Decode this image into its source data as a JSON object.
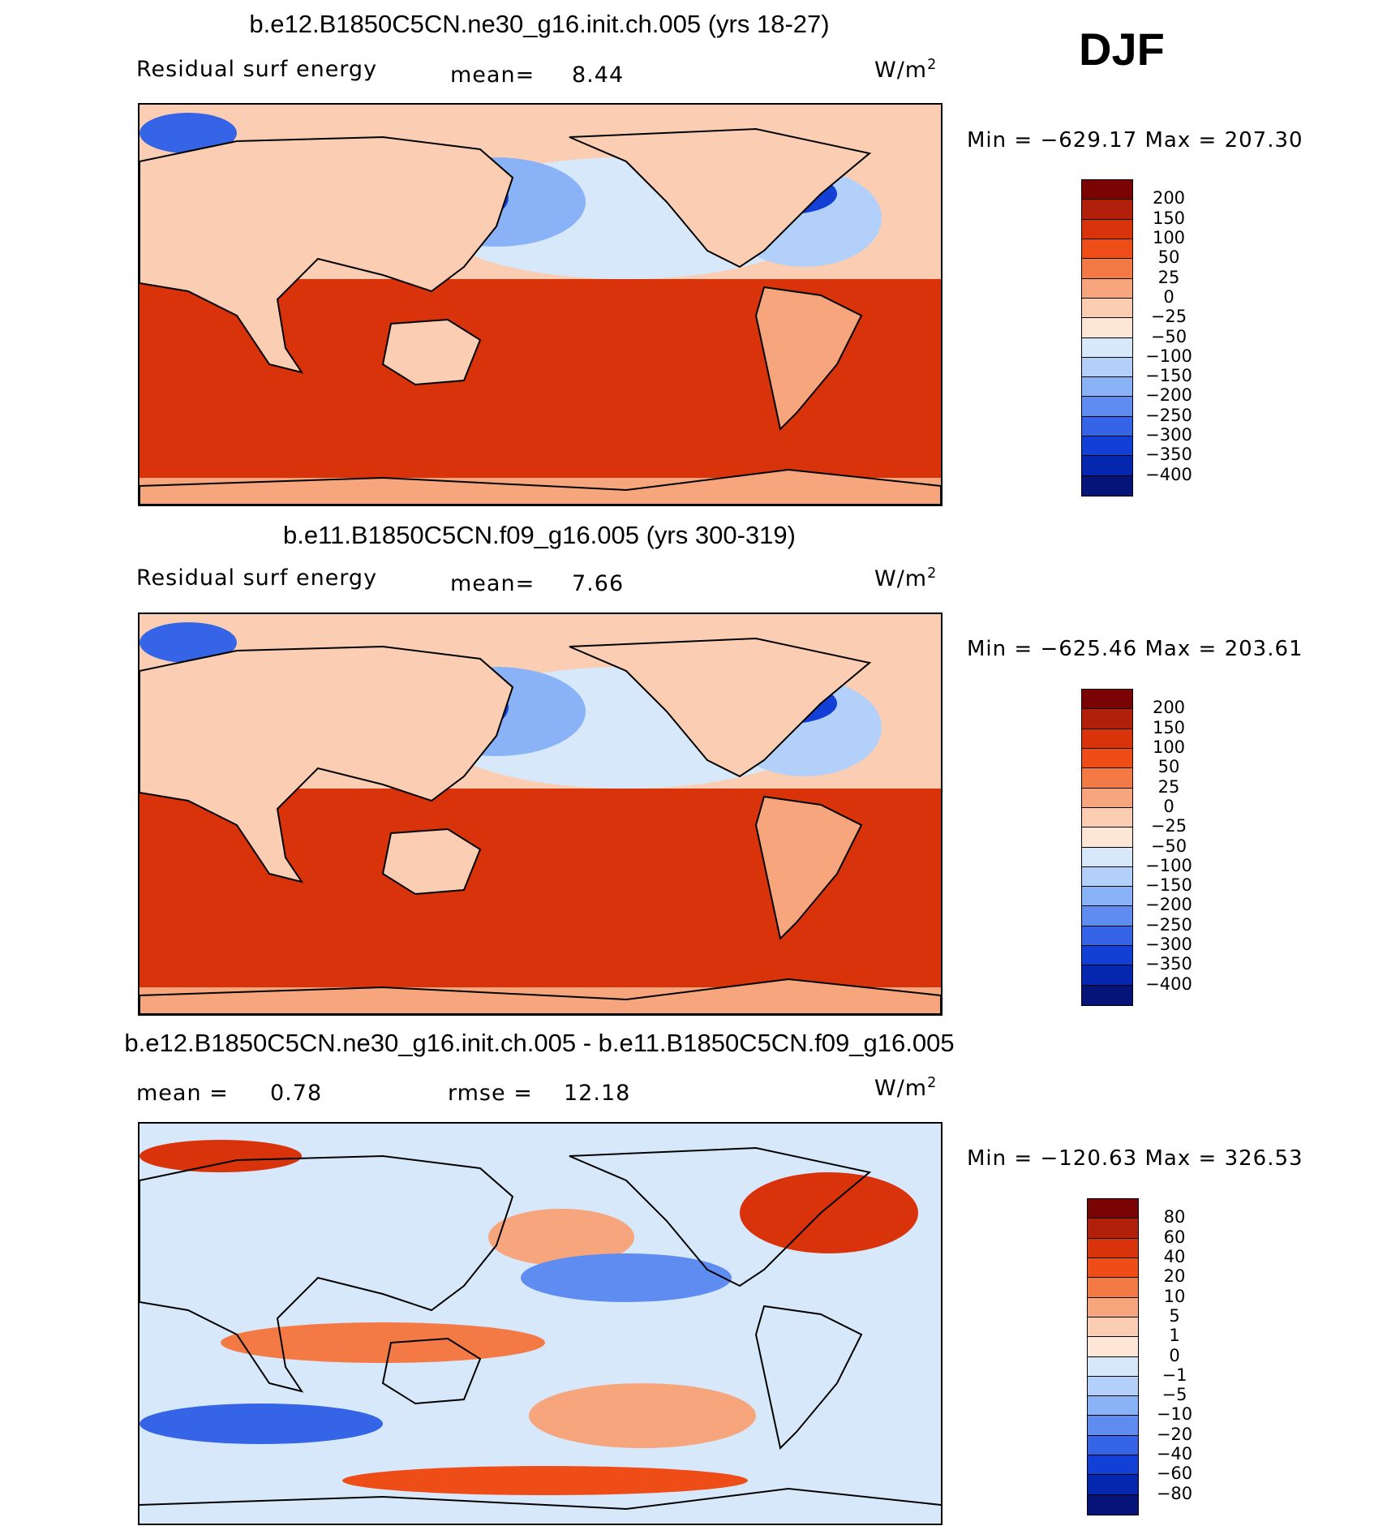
{
  "season": "DJF",
  "chart_data": [
    {
      "type": "heatmap",
      "title": "b.e12.B1850C5CN.ne30_g16.init.ch.005 (yrs 18-27)",
      "left_label": "Residual surf energy",
      "stat_label": "mean=",
      "stat_value": "8.44",
      "units": "W/m",
      "units_exp": "2",
      "min_label": "Min",
      "min_value": "−629.17",
      "max_label": "Max",
      "max_value": "207.30",
      "colorbar_levels": [
        "200",
        "150",
        "100",
        "50",
        "25",
        "0",
        "−25",
        "−50",
        "−100",
        "−150",
        "−200",
        "−250",
        "−300",
        "−350",
        "−400"
      ],
      "colorbar_colors": [
        "#7a0403",
        "#b0200a",
        "#d8330b",
        "#ef4d17",
        "#f47a45",
        "#f6a57c",
        "#fbcdb3",
        "#fde6d6",
        "#d7e8fb",
        "#b3d0fa",
        "#8ab2f6",
        "#5e8cf0",
        "#3565e6",
        "#1240d6",
        "#0527b0",
        "#06147a"
      ]
    },
    {
      "type": "heatmap",
      "title": "b.e11.B1850C5CN.f09_g16.005 (yrs 300-319)",
      "left_label": "Residual surf energy",
      "stat_label": "mean=",
      "stat_value": "7.66",
      "units": "W/m",
      "units_exp": "2",
      "min_label": "Min",
      "min_value": "−625.46",
      "max_label": "Max",
      "max_value": "203.61",
      "colorbar_levels": [
        "200",
        "150",
        "100",
        "50",
        "25",
        "0",
        "−25",
        "−50",
        "−100",
        "−150",
        "−200",
        "−250",
        "−300",
        "−350",
        "−400"
      ],
      "colorbar_colors": [
        "#7a0403",
        "#b0200a",
        "#d8330b",
        "#ef4d17",
        "#f47a45",
        "#f6a57c",
        "#fbcdb3",
        "#fde6d6",
        "#d7e8fb",
        "#b3d0fa",
        "#8ab2f6",
        "#5e8cf0",
        "#3565e6",
        "#1240d6",
        "#0527b0",
        "#06147a"
      ]
    },
    {
      "type": "heatmap",
      "title": "b.e12.B1850C5CN.ne30_g16.init.ch.005 - b.e11.B1850C5CN.f09_g16.005",
      "left_label": "mean =",
      "left_value": "0.78",
      "stat_label": "rmse =",
      "stat_value": "12.18",
      "units": "W/m",
      "units_exp": "2",
      "min_label": "Min",
      "min_value": "−120.63",
      "max_label": "Max",
      "max_value": "326.53",
      "colorbar_levels": [
        "80",
        "60",
        "40",
        "20",
        "10",
        "5",
        "1",
        "0",
        "−1",
        "−5",
        "−10",
        "−20",
        "−40",
        "−60",
        "−80"
      ],
      "colorbar_colors": [
        "#7a0403",
        "#b0200a",
        "#d8330b",
        "#ef4d17",
        "#f47a45",
        "#f6a57c",
        "#fbcdb3",
        "#fde6d6",
        "#d7e8fb",
        "#b3d0fa",
        "#8ab2f6",
        "#5e8cf0",
        "#3565e6",
        "#1240d6",
        "#0527b0",
        "#06147a"
      ]
    }
  ]
}
